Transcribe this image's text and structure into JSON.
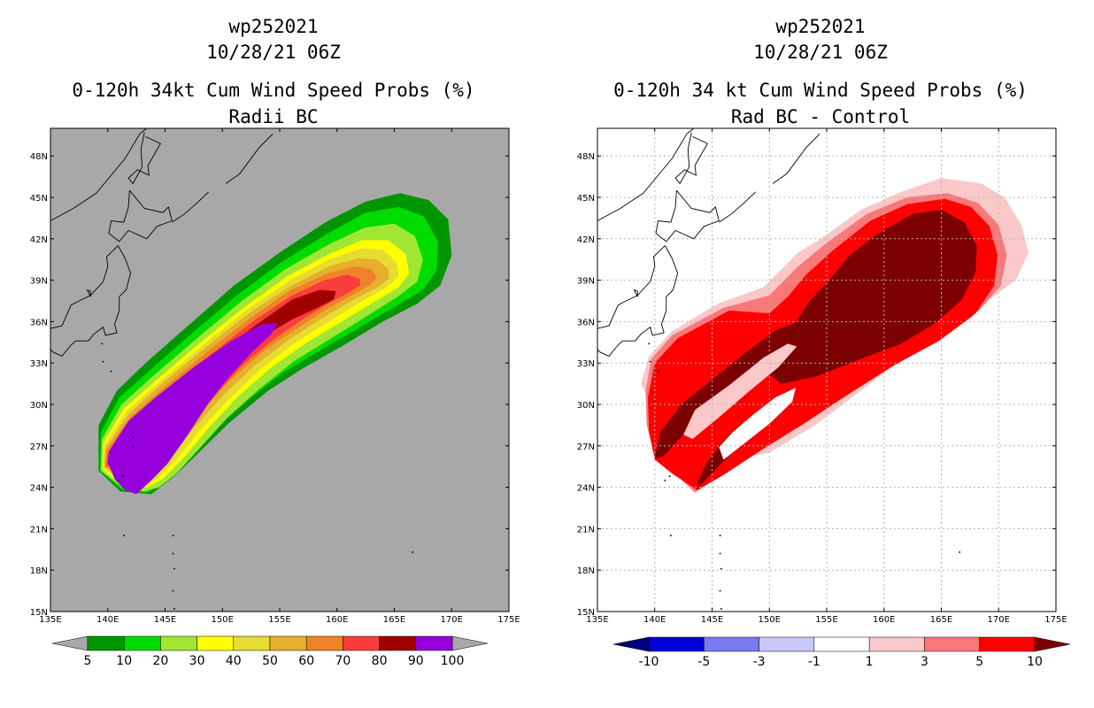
{
  "chart_data": [
    {
      "type": "heatmap",
      "id": "wp252021",
      "datetime": "10/28/21 06Z",
      "title": "0-120h 34kt Cum Wind Speed Probs (%)",
      "subtitle": "Radii BC",
      "background": "#a8a8a8",
      "x_ticks": [
        "135E",
        "140E",
        "145E",
        "150E",
        "155E",
        "160E",
        "165E",
        "170E",
        "175E"
      ],
      "y_ticks": [
        "15N",
        "18N",
        "21N",
        "24N",
        "27N",
        "30N",
        "33N",
        "36N",
        "39N",
        "42N",
        "45N",
        "48N"
      ],
      "xlim": [
        135,
        175
      ],
      "ylim": [
        15,
        50
      ],
      "grid": false,
      "colorbar": {
        "colors": [
          "#009600",
          "#00dc00",
          "#a0e632",
          "#ffff00",
          "#e6dc32",
          "#e6af2d",
          "#f08228",
          "#fa3c3c",
          "#a00000",
          "#9600dc"
        ],
        "labels": [
          "5",
          "10",
          "20",
          "30",
          "40",
          "50",
          "60",
          "70",
          "80",
          "90",
          "100"
        ],
        "extend_color": "#a8a8a8"
      }
    },
    {
      "type": "heatmap",
      "id": "wp252021",
      "datetime": "10/28/21 06Z",
      "title": "0-120h 34 kt Cum Wind Speed Probs (%)",
      "subtitle": "Rad BC - Control",
      "background": "#ffffff",
      "x_ticks": [
        "135E",
        "140E",
        "145E",
        "150E",
        "155E",
        "160E",
        "165E",
        "170E",
        "175E"
      ],
      "y_ticks": [
        "15N",
        "18N",
        "21N",
        "24N",
        "27N",
        "30N",
        "33N",
        "36N",
        "39N",
        "42N",
        "45N",
        "48N"
      ],
      "xlim": [
        135,
        175
      ],
      "ylim": [
        15,
        50
      ],
      "grid": true,
      "colorbar": {
        "colors": [
          "#0000d7",
          "#7878f0",
          "#c8c8fa",
          "#ffffff",
          "#fac8c8",
          "#f87878",
          "#ff0000"
        ],
        "labels": [
          "-10",
          "-5",
          "-3",
          "-1",
          "1",
          "3",
          "5",
          "10"
        ],
        "extend_low": "#00007d",
        "extend_high": "#7d0000"
      }
    }
  ]
}
